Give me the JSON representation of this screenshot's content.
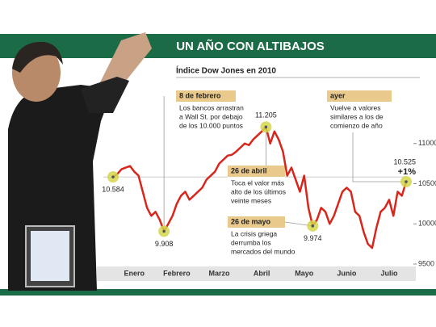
{
  "chart_data": {
    "type": "line",
    "title": "UN AÑO CON ALTIBAJOS",
    "subtitle": "Índice Dow Jones en 2010",
    "categories": [
      null,
      null,
      null,
      null,
      null,
      "Enero",
      null,
      null,
      null,
      null,
      null,
      null,
      null,
      null,
      null,
      "Febrero",
      null,
      null,
      null,
      null,
      null,
      null,
      null,
      null,
      null,
      "Marzo",
      null,
      null,
      null,
      null,
      null,
      null,
      null,
      null,
      null,
      "Abril",
      null,
      null,
      null,
      null,
      null,
      null,
      null,
      null,
      null,
      "Mayo",
      null,
      null,
      null,
      null,
      null,
      null,
      null,
      null,
      null,
      "Junio",
      null,
      null,
      null,
      null,
      null,
      null,
      null,
      null,
      null,
      "Julio",
      null,
      null,
      null,
      null
    ],
    "series": [
      {
        "color": "#d8261c",
        "values": [
          10584,
          10620,
          10680,
          10700,
          10720,
          10650,
          10600,
          10400,
          10200,
          10100,
          10150,
          10050,
          9908,
          10000,
          10100,
          10250,
          10350,
          10400,
          10300,
          10350,
          10400,
          10450,
          10550,
          10600,
          10650,
          10750,
          10800,
          10850,
          10860,
          10900,
          10950,
          11000,
          10980,
          11050,
          11100,
          11150,
          11205,
          11000,
          11150,
          11050,
          10900,
          10600,
          10700,
          10550,
          10400,
          10600,
          10200,
          9974,
          10050,
          10200,
          10150,
          10000,
          10100,
          10250,
          10400,
          10450,
          10400,
          10150,
          10100,
          9900,
          9750,
          9700,
          9950,
          10150,
          10200,
          10300,
          10100,
          10400,
          10350,
          10525
        ]
      }
    ],
    "ylim": [
      9500,
      11500
    ],
    "yticks": [
      9500,
      10000,
      10500,
      11000
    ],
    "highlights": [
      {
        "point": 0,
        "label": "10.584"
      },
      {
        "point": 12,
        "label": "9.908"
      },
      {
        "point": 36,
        "label": "11.205"
      },
      {
        "point": 47,
        "label": "9.974"
      },
      {
        "point": 69,
        "label": "10.525"
      }
    ],
    "change": "+1%",
    "callouts": [
      {
        "title": "8 de febrero",
        "point": 12,
        "lines": [
          "Los bancos arrastran",
          "a Wall St. por debajo",
          "de los 10.000 puntos"
        ]
      },
      {
        "title": "26 de abril",
        "point": 36,
        "lines": [
          "Toca el valor más",
          "alto de los últimos",
          "veinte meses"
        ]
      },
      {
        "title": "26 de mayo",
        "point": 47,
        "lines": [
          "La crisis griega",
          "derrumba los",
          "mercados del mundo"
        ]
      },
      {
        "title": "ayer",
        "point": 69,
        "lines": [
          "Vuelve a valores",
          "similares a los de",
          "comienzo de año"
        ]
      }
    ]
  }
}
